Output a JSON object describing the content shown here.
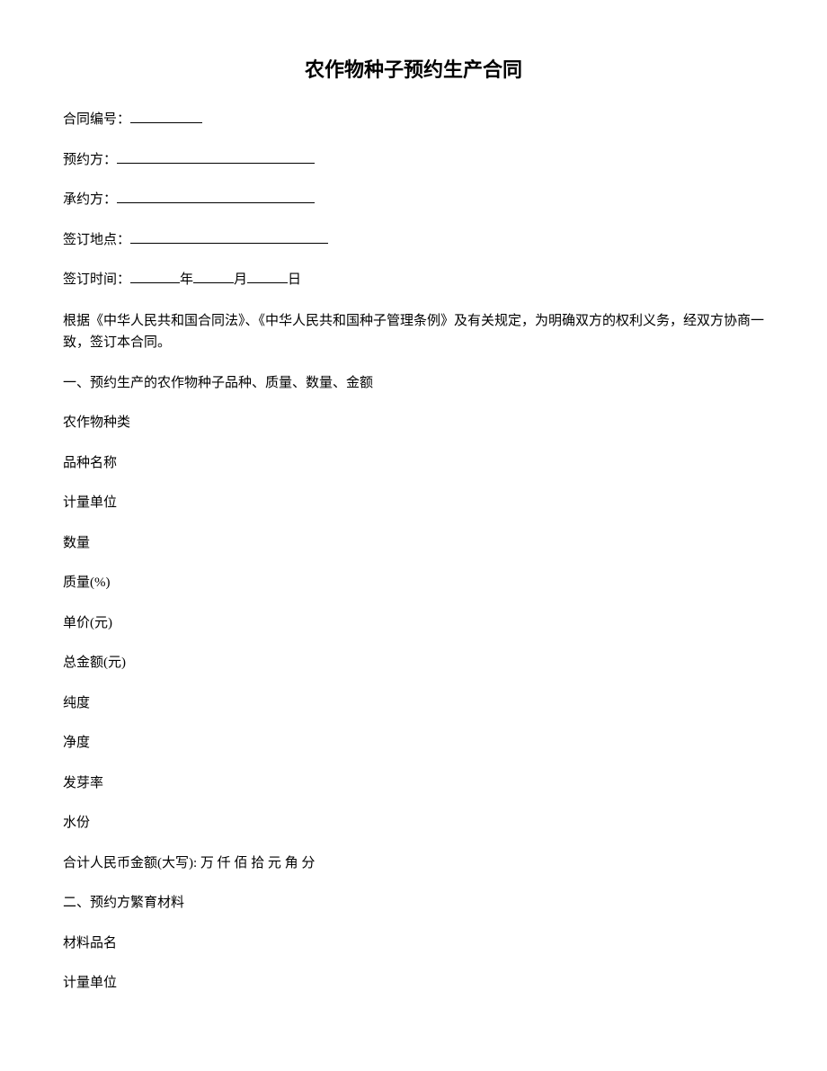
{
  "title": "农作物种子预约生产合同",
  "fields": {
    "contract_number_label": "合同编号：",
    "party_a_label": "预约方：",
    "party_b_label": "承约方：",
    "location_label": "签订地点：",
    "date_label": "签订时间：",
    "year_suffix": "年",
    "month_suffix": "月",
    "day_suffix": "日"
  },
  "intro_paragraph": "根据《中华人民共和国合同法》、《中华人民共和国种子管理条例》及有关规定，为明确双方的权利义务，经双方协商一致，签订本合同。",
  "section1": {
    "header": "一、预约生产的农作物种子品种、质量、数量、金额",
    "items": {
      "crop_type": "农作物种类",
      "variety_name": "品种名称",
      "unit": "计量单位",
      "quantity": "数量",
      "quality": "质量(%)",
      "unit_price": "单价(元)",
      "total_amount": "总金额(元)",
      "purity": "纯度",
      "cleanliness": "净度",
      "germination": "发芽率",
      "moisture": "水份",
      "total_rmb": "合计人民币金额(大写): 万 仟 佰 拾 元 角 分"
    }
  },
  "section2": {
    "header": "二、预约方繁育材料",
    "items": {
      "material_name": "材料品名",
      "unit": "计量单位"
    }
  }
}
